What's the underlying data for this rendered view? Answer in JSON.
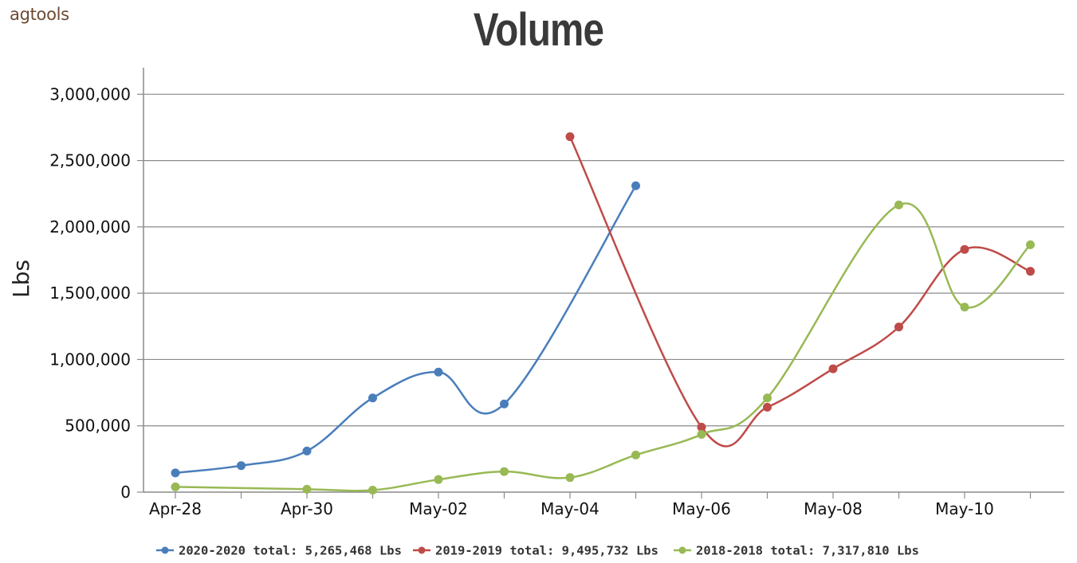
{
  "brand": "agtools",
  "chart_data": {
    "type": "line",
    "title": "Volume",
    "xlabel": "",
    "ylabel": "Lbs",
    "ylim": [
      0,
      3200000
    ],
    "yticks": [
      0,
      500000,
      1000000,
      1500000,
      2000000,
      2500000,
      3000000
    ],
    "ytick_labels": [
      "0",
      "500,000",
      "1,000,000",
      "1,500,000",
      "2,000,000",
      "2,500,000",
      "3,000,000"
    ],
    "x_dates": [
      "Apr-28",
      "Apr-29",
      "Apr-30",
      "May-01",
      "May-02",
      "May-03",
      "May-04",
      "May-05",
      "May-06",
      "May-07",
      "May-08",
      "May-09",
      "May-10",
      "May-11"
    ],
    "xtick_labels": [
      "Apr-28",
      "Apr-30",
      "May-02",
      "May-04",
      "May-06",
      "May-08",
      "May-10"
    ],
    "grid": true,
    "legend_position": "bottom",
    "series": [
      {
        "name": "2020-2020 total: 5,265,468 Lbs",
        "color": "#4a7ebb",
        "x": [
          "Apr-28",
          "Apr-29",
          "Apr-30",
          "May-01",
          "May-02",
          "May-03",
          "May-05"
        ],
        "values": [
          145000,
          200000,
          310000,
          710000,
          905000,
          665000,
          2310000
        ]
      },
      {
        "name": "2019-2019 total: 9,495,732 Lbs",
        "color": "#be4b48",
        "x": [
          "May-04",
          "May-06",
          "May-07",
          "May-08",
          "May-09",
          "May-10",
          "May-11"
        ],
        "values": [
          2680000,
          490000,
          640000,
          930000,
          1245000,
          1830000,
          1665000
        ]
      },
      {
        "name": "2018-2018 total: 7,317,810 Lbs",
        "color": "#98b954",
        "x": [
          "Apr-28",
          "Apr-30",
          "May-01",
          "May-02",
          "May-03",
          "May-04",
          "May-05",
          "May-06",
          "May-07",
          "May-09",
          "May-10",
          "May-11"
        ],
        "values": [
          40000,
          22000,
          15000,
          95000,
          155000,
          110000,
          280000,
          435000,
          710000,
          2165000,
          1395000,
          1865000
        ]
      }
    ]
  }
}
